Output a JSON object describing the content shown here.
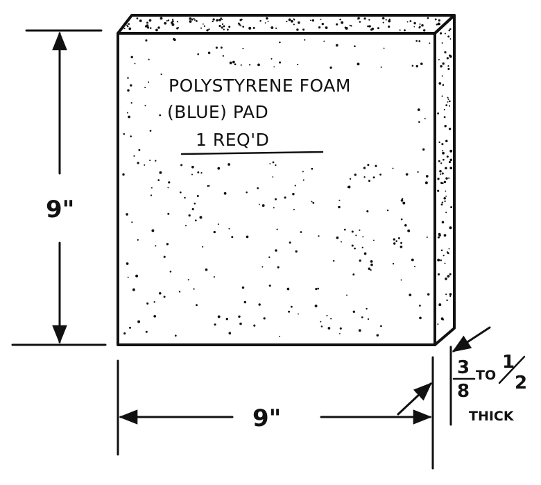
{
  "part": {
    "name_line1": "POLYSTYRENE FOAM",
    "name_line2": "(BLUE) PAD",
    "quantity": "1 REQ'D"
  },
  "dimensions": {
    "height": "9\"",
    "width": "9\"",
    "thickness_min_num": "3",
    "thickness_min_den": "8",
    "thickness_to": "TO",
    "thickness_max_num": "1",
    "thickness_max_den": "2",
    "thickness_label": "THICK"
  },
  "colors": {
    "ink": "#111111",
    "paper": "#ffffff"
  }
}
